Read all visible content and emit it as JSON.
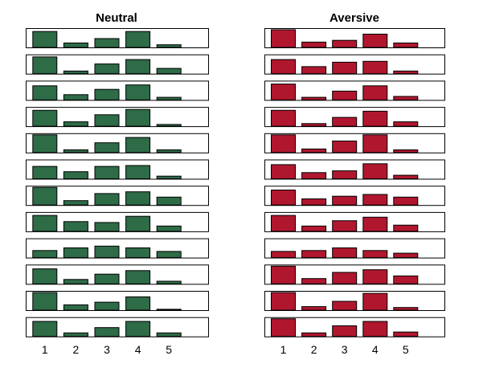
{
  "chart_data": [
    {
      "type": "bar",
      "title": "Neutral",
      "categories": [
        "1",
        "2",
        "3",
        "4",
        "5"
      ],
      "color": "#2e6b47",
      "ylim": [
        0,
        1
      ],
      "series": [
        {
          "values": [
            0.9,
            0.25,
            0.5,
            0.9,
            0.15
          ]
        },
        {
          "values": [
            0.95,
            0.15,
            0.55,
            0.8,
            0.3
          ]
        },
        {
          "values": [
            0.8,
            0.3,
            0.6,
            0.85,
            0.15
          ]
        },
        {
          "values": [
            0.9,
            0.25,
            0.65,
            0.95,
            0.1
          ]
        },
        {
          "values": [
            1.0,
            0.15,
            0.55,
            0.85,
            0.15
          ]
        },
        {
          "values": [
            0.7,
            0.4,
            0.7,
            0.75,
            0.15
          ]
        },
        {
          "values": [
            1.0,
            0.25,
            0.65,
            0.75,
            0.45
          ]
        },
        {
          "values": [
            0.9,
            0.55,
            0.5,
            0.85,
            0.3
          ]
        },
        {
          "values": [
            0.4,
            0.55,
            0.65,
            0.55,
            0.35
          ]
        },
        {
          "values": [
            0.85,
            0.25,
            0.55,
            0.75,
            0.15
          ]
        },
        {
          "values": [
            1.0,
            0.3,
            0.45,
            0.75,
            0.05
          ]
        },
        {
          "values": [
            0.85,
            0.2,
            0.5,
            0.85,
            0.2
          ]
        }
      ]
    },
    {
      "type": "bar",
      "title": "Aversive",
      "categories": [
        "1",
        "2",
        "3",
        "4",
        "5"
      ],
      "color": "#b0172f",
      "ylim": [
        0,
        1
      ],
      "series": [
        {
          "values": [
            1.0,
            0.3,
            0.4,
            0.75,
            0.25
          ]
        },
        {
          "values": [
            0.8,
            0.4,
            0.65,
            0.7,
            0.15
          ]
        },
        {
          "values": [
            0.9,
            0.15,
            0.5,
            0.8,
            0.2
          ]
        },
        {
          "values": [
            0.9,
            0.15,
            0.5,
            0.85,
            0.25
          ]
        },
        {
          "values": [
            1.0,
            0.2,
            0.65,
            1.0,
            0.15
          ]
        },
        {
          "values": [
            0.8,
            0.35,
            0.45,
            0.85,
            0.2
          ]
        },
        {
          "values": [
            0.85,
            0.35,
            0.5,
            0.6,
            0.45
          ]
        },
        {
          "values": [
            0.9,
            0.3,
            0.6,
            0.8,
            0.35
          ]
        },
        {
          "values": [
            0.35,
            0.4,
            0.55,
            0.4,
            0.25
          ]
        },
        {
          "values": [
            1.0,
            0.3,
            0.65,
            0.8,
            0.45
          ]
        },
        {
          "values": [
            1.0,
            0.2,
            0.5,
            0.95,
            0.15
          ]
        },
        {
          "values": [
            1.0,
            0.2,
            0.6,
            0.85,
            0.25
          ]
        }
      ]
    }
  ]
}
